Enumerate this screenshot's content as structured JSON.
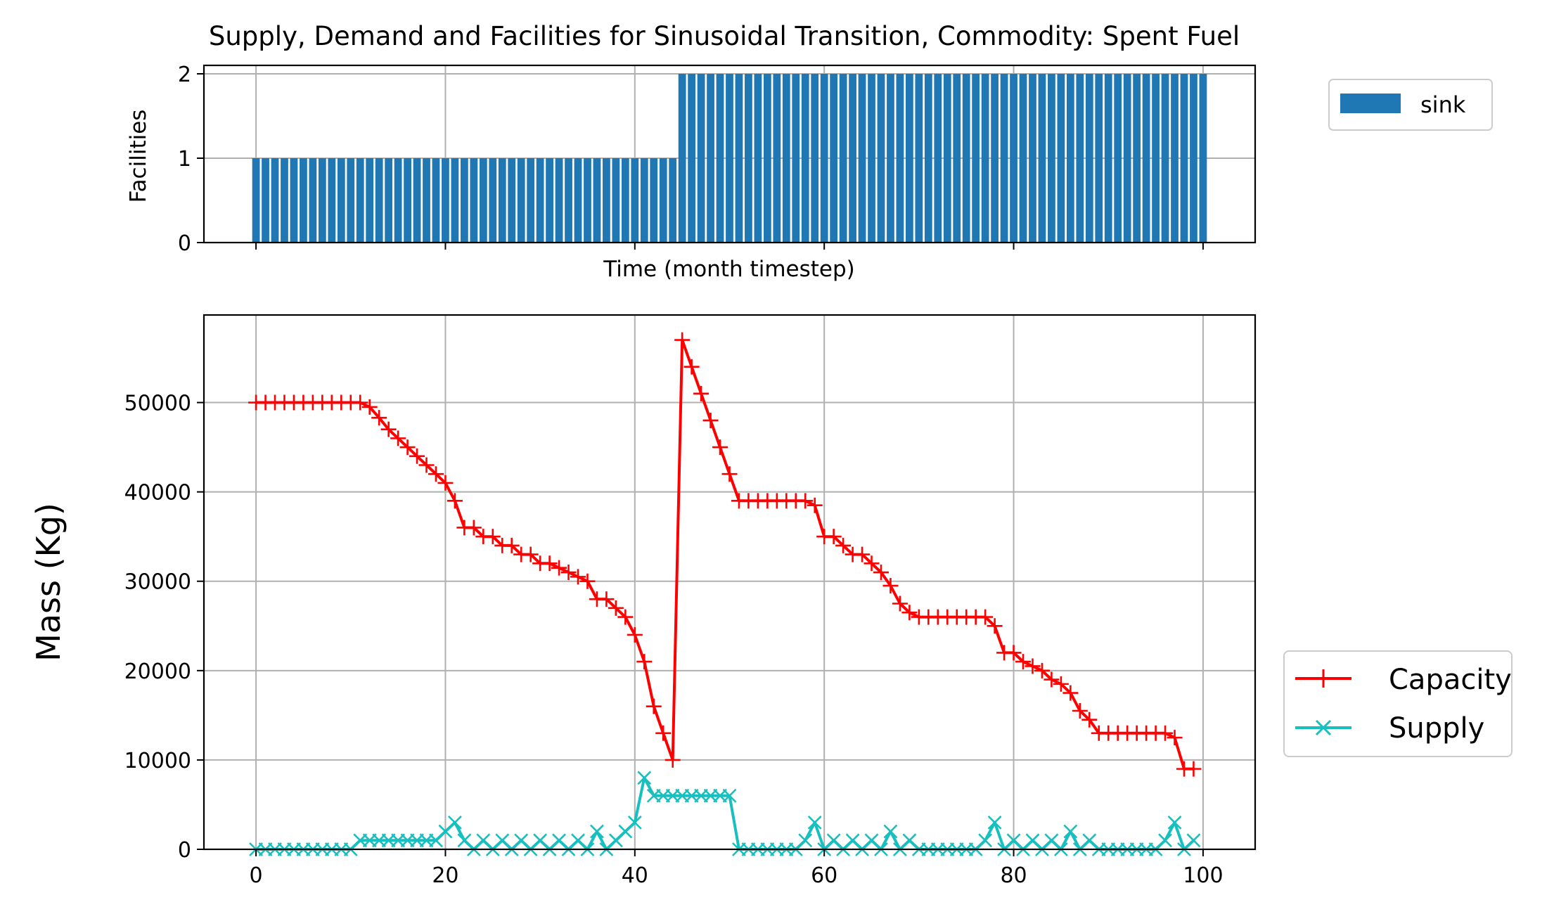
{
  "chart_data": [
    {
      "type": "bar",
      "panel": "top",
      "title": "Supply, Demand and Facilities for Sinusoidal Transition, Commodity: Spent Fuel",
      "xlabel": "Time (month timestep)",
      "ylabel": "Facilities",
      "xlim": [
        -5.5,
        105.5
      ],
      "ylim": [
        0,
        2.1
      ],
      "yticks": [
        "0",
        "1",
        "2"
      ],
      "grid": true,
      "legend_placement": "outside-right-top",
      "series": [
        {
          "name": "sink",
          "color": "#1f77b4",
          "segments": [
            {
              "x_from": 0,
              "x_to": 44,
              "value": 1
            },
            {
              "x_from": 45,
              "x_to": 100,
              "value": 2
            }
          ]
        }
      ]
    },
    {
      "type": "line",
      "panel": "bottom",
      "xlabel": "",
      "ylabel": "Mass (Kg)",
      "xlim": [
        -5.5,
        105.5
      ],
      "ylim": [
        0,
        59800
      ],
      "xticks": [
        "0",
        "20",
        "40",
        "60",
        "80",
        "100"
      ],
      "yticks": [
        "0",
        "10000",
        "20000",
        "30000",
        "40000",
        "50000"
      ],
      "grid": true,
      "legend_placement": "outside-right-bottom",
      "series": [
        {
          "name": "Capacity",
          "color": "#ff0000",
          "marker": "plus",
          "x": [
            0,
            1,
            2,
            3,
            4,
            5,
            6,
            7,
            8,
            9,
            10,
            11,
            12,
            13,
            14,
            15,
            16,
            17,
            18,
            19,
            20,
            21,
            22,
            23,
            24,
            25,
            26,
            27,
            28,
            29,
            30,
            31,
            32,
            33,
            34,
            35,
            36,
            37,
            38,
            39,
            40,
            41,
            42,
            43,
            44,
            45,
            46,
            47,
            48,
            49,
            50,
            51,
            52,
            53,
            54,
            55,
            56,
            57,
            58,
            59,
            60,
            61,
            62,
            63,
            64,
            65,
            66,
            67,
            68,
            69,
            70,
            71,
            72,
            73,
            74,
            75,
            76,
            77,
            78,
            79,
            80,
            81,
            82,
            83,
            84,
            85,
            86,
            87,
            88,
            89,
            90,
            91,
            92,
            93,
            94,
            95,
            96,
            97,
            98,
            99
          ],
          "y": [
            50000,
            50000,
            50000,
            50000,
            50000,
            50000,
            50000,
            50000,
            50000,
            50000,
            50000,
            50000,
            49500,
            48300,
            47000,
            46000,
            45000,
            44000,
            43000,
            42000,
            41000,
            39000,
            36000,
            36000,
            35000,
            35000,
            34000,
            34000,
            33000,
            33000,
            32000,
            32000,
            31500,
            31000,
            30500,
            30000,
            28000,
            28000,
            27000,
            26000,
            24000,
            21000,
            16000,
            13000,
            10000,
            57000,
            54000,
            51000,
            48000,
            45000,
            42000,
            39000,
            39000,
            39000,
            39000,
            39000,
            39000,
            39000,
            39000,
            38500,
            35000,
            35000,
            34000,
            33000,
            33000,
            32000,
            31000,
            29500,
            27500,
            26500,
            26000,
            26000,
            26000,
            26000,
            26000,
            26000,
            26000,
            26000,
            25000,
            22000,
            22000,
            21000,
            20500,
            20000,
            19000,
            18500,
            17500,
            15500,
            14500,
            13000,
            13000,
            13000,
            13000,
            13000,
            13000,
            13000,
            13000,
            12500,
            9000,
            9000
          ]
        },
        {
          "name": "Supply",
          "color": "#17bfbf",
          "marker": "x",
          "x": [
            0,
            1,
            2,
            3,
            4,
            5,
            6,
            7,
            8,
            9,
            10,
            11,
            12,
            13,
            14,
            15,
            16,
            17,
            18,
            19,
            20,
            21,
            22,
            23,
            24,
            25,
            26,
            27,
            28,
            29,
            30,
            31,
            32,
            33,
            34,
            35,
            36,
            37,
            38,
            39,
            40,
            41,
            42,
            43,
            44,
            45,
            46,
            47,
            48,
            49,
            50,
            51,
            52,
            53,
            54,
            55,
            56,
            57,
            58,
            59,
            60,
            61,
            62,
            63,
            64,
            65,
            66,
            67,
            68,
            69,
            70,
            71,
            72,
            73,
            74,
            75,
            76,
            77,
            78,
            79,
            80,
            81,
            82,
            83,
            84,
            85,
            86,
            87,
            88,
            89,
            90,
            91,
            92,
            93,
            94,
            95,
            96,
            97,
            98,
            99
          ],
          "y": [
            0,
            0,
            0,
            0,
            0,
            0,
            0,
            0,
            0,
            0,
            0,
            1000,
            1000,
            1000,
            1000,
            1000,
            1000,
            1000,
            1000,
            1000,
            2000,
            3000,
            1000,
            0,
            1000,
            0,
            1000,
            0,
            1000,
            0,
            1000,
            0,
            1000,
            0,
            1000,
            0,
            2000,
            0,
            1000,
            2000,
            3000,
            8000,
            6000,
            6000,
            6000,
            6000,
            6000,
            6000,
            6000,
            6000,
            6000,
            0,
            0,
            0,
            0,
            0,
            0,
            0,
            1000,
            3000,
            0,
            1000,
            0,
            1000,
            0,
            1000,
            0,
            2000,
            0,
            1000,
            0,
            0,
            0,
            0,
            0,
            0,
            0,
            1000,
            3000,
            0,
            1000,
            0,
            1000,
            0,
            1000,
            0,
            2000,
            0,
            1000,
            0,
            0,
            0,
            0,
            0,
            0,
            0,
            1000,
            3000,
            0,
            1000
          ]
        }
      ]
    }
  ]
}
